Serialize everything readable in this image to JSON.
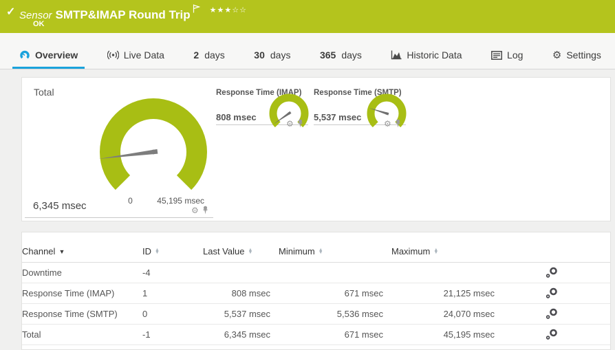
{
  "header": {
    "kind": "Sensor",
    "title": "SMTP&IMAP Round Trip",
    "status": "OK",
    "stars": "★★★☆☆",
    "banner_color": "#b4c41d"
  },
  "tabs": {
    "overview": {
      "label": "Overview"
    },
    "live": {
      "label": "Live Data"
    },
    "d2": {
      "num": "2",
      "unit": "days"
    },
    "d30": {
      "num": "30",
      "unit": "days"
    },
    "d365": {
      "num": "365",
      "unit": "days"
    },
    "historic": {
      "label": "Historic Data"
    },
    "log": {
      "label": "Log"
    },
    "settings": {
      "label": "Settings"
    }
  },
  "colors": {
    "accent_blue": "#1aa2dc",
    "gauge_green": "#a8be14",
    "status_ok_green": "#b4c41d"
  },
  "gauges": {
    "total": {
      "label": "Total",
      "value": "6,345 msec",
      "scale_min": "0",
      "scale_max": "45,195 msec",
      "needle_angle_deg": 262.8
    },
    "imap": {
      "label": "Response Time (IMAP)",
      "value": "808 msec",
      "needle_angle_deg": 235.3
    },
    "smtp": {
      "label": "Response Time (SMTP)",
      "value": "5,537 msec",
      "needle_angle_deg": 287.1
    }
  },
  "table": {
    "headers": {
      "channel": "Channel",
      "id": "ID",
      "last": "Last Value",
      "min": "Minimum",
      "max": "Maximum"
    },
    "rows": [
      {
        "channel": "Downtime",
        "id": "-4",
        "last": "",
        "min": "",
        "max": ""
      },
      {
        "channel": "Response Time (IMAP)",
        "id": "1",
        "last": "808 msec",
        "min": "671 msec",
        "max": "21,125 msec"
      },
      {
        "channel": "Response Time (SMTP)",
        "id": "0",
        "last": "5,537 msec",
        "min": "5,536 msec",
        "max": "24,070 msec"
      },
      {
        "channel": "Total",
        "id": "-1",
        "last": "6,345 msec",
        "min": "671 msec",
        "max": "45,195 msec"
      }
    ]
  }
}
